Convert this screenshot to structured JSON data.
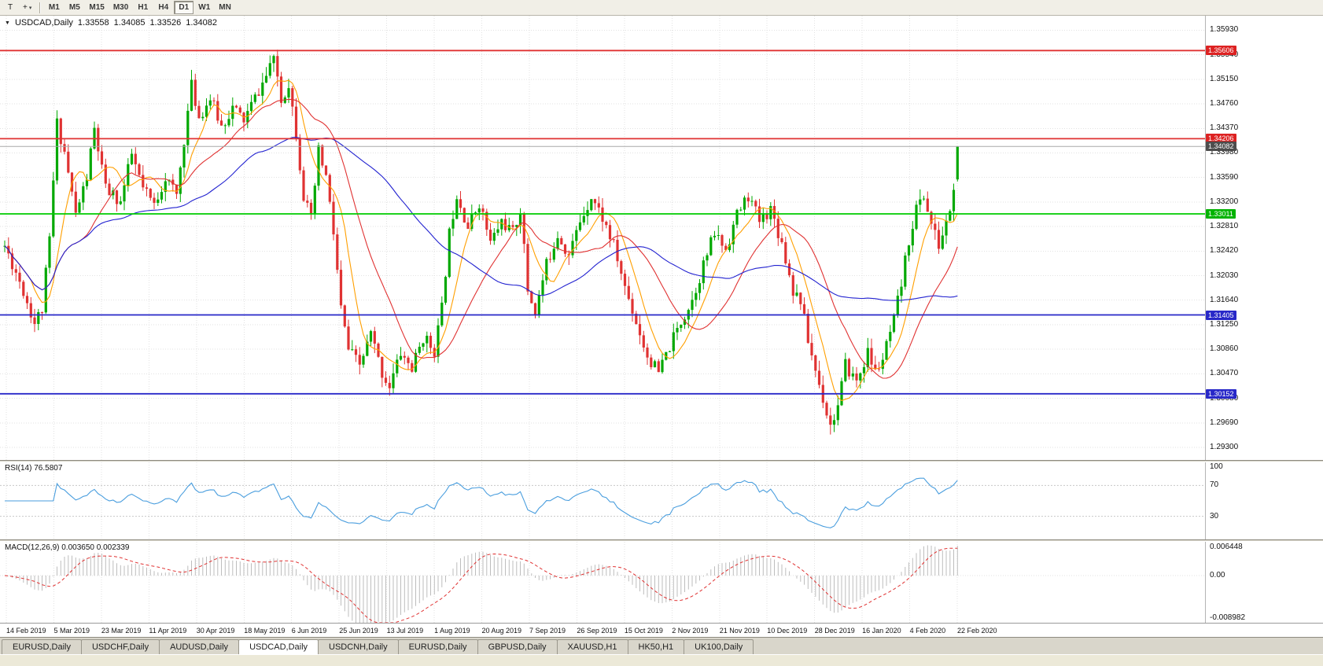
{
  "toolbar": {
    "tools": [
      {
        "name": "text-tool",
        "glyph": "T"
      },
      {
        "name": "crosshair-tool",
        "glyph": "+",
        "caret": "▾"
      }
    ],
    "timeframes": [
      "M1",
      "M5",
      "M15",
      "M30",
      "H1",
      "H4",
      "D1",
      "W1",
      "MN"
    ],
    "active_timeframe": "D1"
  },
  "chart": {
    "header": {
      "dropdown_glyph": "▼",
      "symbol": "USDCAD,Daily",
      "open": "1.33558",
      "high": "1.34085",
      "low": "1.33526",
      "close": "1.34082"
    },
    "price_axis": {
      "labels": [
        "1.35930",
        "1.35540",
        "1.35150",
        "1.34760",
        "1.34370",
        "1.33980",
        "1.33590",
        "1.33200",
        "1.32810",
        "1.32420",
        "1.32030",
        "1.31640",
        "1.31250",
        "1.30860",
        "1.30470",
        "1.30080",
        "1.29690",
        "1.29300"
      ],
      "view_max": 1.3616,
      "view_min": 1.291
    },
    "hlines": [
      {
        "price": 1.35606,
        "label": "1.35606",
        "color": "#e03232",
        "tag": "#dd2222",
        "width": 1.8,
        "current": false
      },
      {
        "price": 1.34206,
        "label": "1.34206",
        "color": "#e03232",
        "tag": "#dd2222",
        "width": 1.8,
        "current": false
      },
      {
        "price": 1.34082,
        "label": "1.34082",
        "color": "#a8a8a8",
        "tag": "#4d4d4d",
        "width": 1,
        "current": true
      },
      {
        "price": 1.33011,
        "label": "1.33011",
        "color": "#00cc00",
        "tag": "#00b300",
        "width": 1.8,
        "current": false
      },
      {
        "price": 1.31405,
        "label": "1.31405",
        "color": "#2828c8",
        "tag": "#2828c8",
        "width": 1.8,
        "current": false
      },
      {
        "price": 1.30152,
        "label": "1.30152",
        "color": "#2828c8",
        "tag": "#2828c8",
        "width": 1.8,
        "current": false
      }
    ],
    "date_labels": [
      "14 Feb 2019",
      "5 Mar 2019",
      "23 Mar 2019",
      "11 Apr 2019",
      "30 Apr 2019",
      "18 May 2019",
      "6 Jun 2019",
      "25 Jun 2019",
      "13 Jul 2019",
      "1 Aug 2019",
      "20 Aug 2019",
      "7 Sep 2019",
      "26 Sep 2019",
      "15 Oct 2019",
      "2 Nov 2019",
      "21 Nov 2019",
      "10 Dec 2019",
      "28 Dec 2019",
      "16 Jan 2020",
      "4 Feb 2020",
      "22 Feb 2020"
    ],
    "colors": {
      "up": "#00a800",
      "down": "#e03232",
      "bg": "#ffffff"
    }
  },
  "chart_data": {
    "type": "candlestick",
    "symbol": "USDCAD",
    "timeframe": "Daily",
    "bars": 256,
    "seed": 11,
    "anchors": [
      [
        0,
        1.325
      ],
      [
        4,
        1.3195
      ],
      [
        8,
        1.3128
      ],
      [
        10,
        1.315
      ],
      [
        12,
        1.326
      ],
      [
        14,
        1.3445
      ],
      [
        16,
        1.34
      ],
      [
        19,
        1.33
      ],
      [
        22,
        1.336
      ],
      [
        24,
        1.3435
      ],
      [
        27,
        1.334
      ],
      [
        31,
        1.332
      ],
      [
        34,
        1.3395
      ],
      [
        37,
        1.334
      ],
      [
        40,
        1.3315
      ],
      [
        43,
        1.336
      ],
      [
        46,
        1.333
      ],
      [
        48,
        1.342
      ],
      [
        50,
        1.3505
      ],
      [
        52,
        1.3455
      ],
      [
        55,
        1.3485
      ],
      [
        58,
        1.344
      ],
      [
        61,
        1.347
      ],
      [
        64,
        1.345
      ],
      [
        67,
        1.3485
      ],
      [
        70,
        1.352
      ],
      [
        72,
        1.356
      ],
      [
        74,
        1.348
      ],
      [
        76,
        1.351
      ],
      [
        78,
        1.343
      ],
      [
        80,
        1.333
      ],
      [
        82,
        1.329
      ],
      [
        84,
        1.34
      ],
      [
        86,
        1.336
      ],
      [
        88,
        1.327
      ],
      [
        90,
        1.315
      ],
      [
        92,
        1.3085
      ],
      [
        95,
        1.306
      ],
      [
        98,
        1.311
      ],
      [
        101,
        1.3048
      ],
      [
        103,
        1.3028
      ],
      [
        106,
        1.308
      ],
      [
        109,
        1.3055
      ],
      [
        112,
        1.3105
      ],
      [
        115,
        1.3085
      ],
      [
        117,
        1.315
      ],
      [
        119,
        1.327
      ],
      [
        121,
        1.3335
      ],
      [
        124,
        1.328
      ],
      [
        127,
        1.332
      ],
      [
        130,
        1.3255
      ],
      [
        133,
        1.329
      ],
      [
        136,
        1.327
      ],
      [
        138,
        1.331
      ],
      [
        140,
        1.318
      ],
      [
        142,
        1.3145
      ],
      [
        145,
        1.322
      ],
      [
        148,
        1.327
      ],
      [
        151,
        1.3235
      ],
      [
        154,
        1.329
      ],
      [
        157,
        1.333
      ],
      [
        160,
        1.3295
      ],
      [
        163,
        1.325
      ],
      [
        166,
        1.3185
      ],
      [
        169,
        1.313
      ],
      [
        172,
        1.3075
      ],
      [
        175,
        1.3048
      ],
      [
        178,
        1.309
      ],
      [
        181,
        1.313
      ],
      [
        184,
        1.3165
      ],
      [
        187,
        1.322
      ],
      [
        190,
        1.327
      ],
      [
        193,
        1.3245
      ],
      [
        196,
        1.33
      ],
      [
        199,
        1.333
      ],
      [
        202,
        1.329
      ],
      [
        205,
        1.331
      ],
      [
        208,
        1.3255
      ],
      [
        211,
        1.318
      ],
      [
        213,
        1.3165
      ],
      [
        215,
        1.31
      ],
      [
        218,
        1.303
      ],
      [
        221,
        1.2965
      ],
      [
        223,
        1.2995
      ],
      [
        225,
        1.306
      ],
      [
        228,
        1.3035
      ],
      [
        231,
        1.308
      ],
      [
        233,
        1.305
      ],
      [
        235,
        1.307
      ],
      [
        238,
        1.313
      ],
      [
        240,
        1.319
      ],
      [
        242,
        1.326
      ],
      [
        244,
        1.331
      ],
      [
        246,
        1.333
      ],
      [
        248,
        1.3285
      ],
      [
        250,
        1.325
      ],
      [
        252,
        1.3285
      ],
      [
        254,
        1.3335
      ],
      [
        255,
        1.3408
      ]
    ],
    "last_bar": {
      "open": 1.33558,
      "high": 1.34085,
      "low": 1.33526,
      "close": 1.34082
    },
    "moving_averages": [
      {
        "period": 8,
        "color": "#ff9f00"
      },
      {
        "period": 21,
        "color": "#e03232"
      },
      {
        "period": 55,
        "color": "#2222d0"
      }
    ]
  },
  "rsi": {
    "header": "RSI(14) 76.5807",
    "period": 14,
    "current": 76.5807,
    "levels": [
      70,
      30
    ],
    "axis_labels": [
      "100",
      "70",
      "30"
    ],
    "line_color": "#4a9ede"
  },
  "macd": {
    "header": "MACD(12,26,9) 0.003650 0.002339",
    "current_macd": 0.00365,
    "current_signal": 0.002339,
    "axis_labels": [
      "0.006448",
      "0.00",
      "-0.008982"
    ],
    "view_max": 0.006448,
    "view_min": -0.008982,
    "histogram_color": "#bdbdbd",
    "signal_color": "#e03232"
  },
  "tabs": {
    "items": [
      "EURUSD,Daily",
      "USDCHF,Daily",
      "AUDUSD,Daily",
      "USDCAD,Daily",
      "USDCNH,Daily",
      "EURUSD,Daily",
      "GBPUSD,Daily",
      "XAUUSD,H1",
      "HK50,H1",
      "UK100,Daily"
    ],
    "active_index": 3
  }
}
